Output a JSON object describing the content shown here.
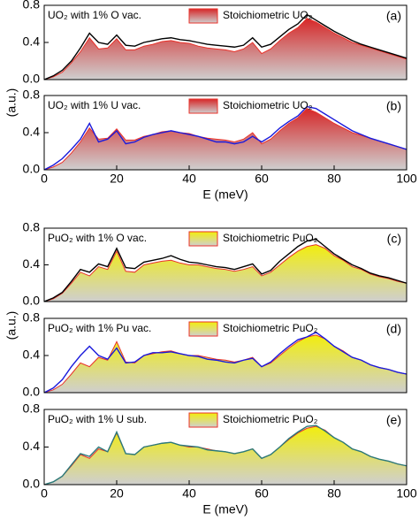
{
  "chart_data": [
    {
      "type": "line",
      "annotation": "(a)",
      "xlim": [
        0,
        100
      ],
      "ylim": [
        0,
        0.8
      ],
      "yticks": [
        {
          "value": 0,
          "label": "0.0"
        },
        0.4,
        0.8
      ],
      "x": [
        0,
        2.5,
        5,
        7.5,
        10,
        12.5,
        15,
        17.5,
        20,
        22.5,
        25,
        27.5,
        30,
        32.5,
        35,
        37.5,
        40,
        42.5,
        45,
        47.5,
        50,
        52.5,
        55,
        57.5,
        60,
        62.5,
        65,
        67.5,
        70,
        72.5,
        75,
        77.5,
        80,
        82.5,
        85,
        87.5,
        90,
        92.5,
        95,
        97.5,
        100
      ],
      "series": [
        {
          "name": "Stoichiometric UO₂",
          "kind": "area",
          "color": "#d62728",
          "values": [
            0,
            0.03,
            0.08,
            0.18,
            0.3,
            0.45,
            0.33,
            0.34,
            0.44,
            0.32,
            0.32,
            0.36,
            0.38,
            0.41,
            0.42,
            0.4,
            0.39,
            0.36,
            0.34,
            0.33,
            0.32,
            0.3,
            0.33,
            0.4,
            0.28,
            0.33,
            0.42,
            0.5,
            0.56,
            0.66,
            0.62,
            0.56,
            0.5,
            0.45,
            0.4,
            0.37,
            0.34,
            0.31,
            0.28,
            0.25,
            0.22
          ]
        },
        {
          "name": "UO₂ with 1% O vac.",
          "kind": "line",
          "color": "#000000",
          "values": [
            0,
            0.04,
            0.1,
            0.2,
            0.34,
            0.5,
            0.4,
            0.38,
            0.48,
            0.37,
            0.36,
            0.4,
            0.42,
            0.44,
            0.45,
            0.43,
            0.42,
            0.4,
            0.38,
            0.37,
            0.36,
            0.35,
            0.37,
            0.45,
            0.35,
            0.38,
            0.46,
            0.54,
            0.6,
            0.7,
            0.64,
            0.58,
            0.52,
            0.47,
            0.42,
            0.38,
            0.35,
            0.32,
            0.29,
            0.26,
            0.23
          ]
        }
      ]
    },
    {
      "type": "line",
      "annotation": "(b)",
      "xlabel": "E (meV)",
      "ylabel": "(a.u.)",
      "xlim": [
        0,
        100
      ],
      "xticks": [
        0,
        20,
        40,
        60,
        80,
        100
      ],
      "ylim": [
        0,
        0.8
      ],
      "yticks": [
        {
          "value": 0,
          "label": "0.0"
        },
        0.4,
        0.8
      ],
      "x": [
        0,
        2.5,
        5,
        7.5,
        10,
        12.5,
        15,
        17.5,
        20,
        22.5,
        25,
        27.5,
        30,
        32.5,
        35,
        37.5,
        40,
        42.5,
        45,
        47.5,
        50,
        52.5,
        55,
        57.5,
        60,
        62.5,
        65,
        67.5,
        70,
        72.5,
        75,
        77.5,
        80,
        82.5,
        85,
        87.5,
        90,
        92.5,
        95,
        97.5,
        100
      ],
      "series": [
        {
          "name": "Stoichiometric UO₂",
          "kind": "area",
          "color": "#d62728",
          "values": [
            0,
            0.03,
            0.08,
            0.18,
            0.3,
            0.45,
            0.33,
            0.34,
            0.44,
            0.32,
            0.32,
            0.36,
            0.38,
            0.41,
            0.42,
            0.4,
            0.39,
            0.36,
            0.34,
            0.33,
            0.32,
            0.3,
            0.33,
            0.4,
            0.28,
            0.33,
            0.42,
            0.5,
            0.56,
            0.66,
            0.62,
            0.56,
            0.5,
            0.45,
            0.4,
            0.37,
            0.34,
            0.31,
            0.28,
            0.25,
            0.22
          ]
        },
        {
          "name": "UO₂ with 1% U vac.",
          "kind": "line",
          "color": "#1a1adb",
          "values": [
            0,
            0.05,
            0.12,
            0.22,
            0.33,
            0.5,
            0.3,
            0.33,
            0.42,
            0.28,
            0.3,
            0.35,
            0.38,
            0.4,
            0.42,
            0.4,
            0.38,
            0.36,
            0.33,
            0.3,
            0.3,
            0.28,
            0.3,
            0.36,
            0.3,
            0.36,
            0.45,
            0.52,
            0.58,
            0.68,
            0.66,
            0.6,
            0.54,
            0.48,
            0.42,
            0.38,
            0.34,
            0.31,
            0.28,
            0.25,
            0.22
          ]
        }
      ]
    },
    {
      "type": "line",
      "annotation": "(c)",
      "xlim": [
        0,
        100
      ],
      "ylim": [
        0,
        0.8
      ],
      "yticks": [
        {
          "value": 0,
          "label": "0.0"
        },
        0.4,
        0.8
      ],
      "x": [
        0,
        2.5,
        5,
        7.5,
        10,
        12.5,
        15,
        17.5,
        20,
        22.5,
        25,
        27.5,
        30,
        32.5,
        35,
        37.5,
        40,
        42.5,
        45,
        47.5,
        50,
        52.5,
        55,
        57.5,
        60,
        62.5,
        65,
        67.5,
        70,
        72.5,
        75,
        77.5,
        80,
        82.5,
        85,
        87.5,
        90,
        92.5,
        95,
        97.5,
        100
      ],
      "series": [
        {
          "name": "Stoichiometric PuO₂",
          "kind": "area",
          "color": "#f2ee0c",
          "values": [
            0,
            0.03,
            0.09,
            0.2,
            0.32,
            0.28,
            0.38,
            0.35,
            0.55,
            0.33,
            0.32,
            0.4,
            0.42,
            0.44,
            0.45,
            0.42,
            0.4,
            0.4,
            0.38,
            0.36,
            0.35,
            0.33,
            0.35,
            0.38,
            0.28,
            0.32,
            0.4,
            0.48,
            0.55,
            0.6,
            0.62,
            0.58,
            0.5,
            0.45,
            0.38,
            0.35,
            0.3,
            0.27,
            0.25,
            0.22,
            0.2
          ]
        },
        {
          "name": "PuO₂ with 1% O vac.",
          "kind": "line",
          "color": "#000000",
          "values": [
            0,
            0.04,
            0.1,
            0.22,
            0.35,
            0.32,
            0.41,
            0.38,
            0.58,
            0.37,
            0.36,
            0.43,
            0.45,
            0.47,
            0.5,
            0.46,
            0.43,
            0.42,
            0.4,
            0.38,
            0.37,
            0.35,
            0.38,
            0.41,
            0.3,
            0.34,
            0.44,
            0.52,
            0.6,
            0.66,
            0.68,
            0.6,
            0.52,
            0.46,
            0.4,
            0.36,
            0.31,
            0.28,
            0.26,
            0.23,
            0.2
          ]
        }
      ]
    },
    {
      "type": "line",
      "annotation": "(d)",
      "ylabel": "(a.u.)",
      "xlim": [
        0,
        100
      ],
      "ylim": [
        0,
        0.8
      ],
      "yticks": [
        {
          "value": 0,
          "label": "0.0"
        },
        0.4,
        0.8
      ],
      "x": [
        0,
        2.5,
        5,
        7.5,
        10,
        12.5,
        15,
        17.5,
        20,
        22.5,
        25,
        27.5,
        30,
        32.5,
        35,
        37.5,
        40,
        42.5,
        45,
        47.5,
        50,
        52.5,
        55,
        57.5,
        60,
        62.5,
        65,
        67.5,
        70,
        72.5,
        75,
        77.5,
        80,
        82.5,
        85,
        87.5,
        90,
        92.5,
        95,
        97.5,
        100
      ],
      "series": [
        {
          "name": "Stoichiometric PuO₂",
          "kind": "area",
          "color": "#f2ee0c",
          "values": [
            0,
            0.03,
            0.09,
            0.2,
            0.32,
            0.28,
            0.38,
            0.35,
            0.55,
            0.33,
            0.32,
            0.4,
            0.42,
            0.44,
            0.45,
            0.42,
            0.4,
            0.4,
            0.38,
            0.36,
            0.35,
            0.33,
            0.35,
            0.38,
            0.28,
            0.32,
            0.4,
            0.48,
            0.55,
            0.6,
            0.62,
            0.58,
            0.5,
            0.45,
            0.38,
            0.35,
            0.3,
            0.27,
            0.25,
            0.22,
            0.2
          ]
        },
        {
          "name": "PuO₂ with 1% Pu vac.",
          "kind": "line",
          "color": "#1a1adb",
          "values": [
            0,
            0.05,
            0.14,
            0.28,
            0.4,
            0.5,
            0.4,
            0.36,
            0.48,
            0.32,
            0.33,
            0.4,
            0.43,
            0.43,
            0.44,
            0.42,
            0.4,
            0.39,
            0.36,
            0.35,
            0.33,
            0.32,
            0.35,
            0.37,
            0.28,
            0.33,
            0.42,
            0.5,
            0.57,
            0.6,
            0.65,
            0.58,
            0.5,
            0.44,
            0.38,
            0.35,
            0.3,
            0.27,
            0.25,
            0.22,
            0.2
          ]
        }
      ]
    },
    {
      "type": "line",
      "annotation": "(e)",
      "xlabel": "E (meV)",
      "xlim": [
        0,
        100
      ],
      "xticks": [
        0,
        20,
        40,
        60,
        80,
        100
      ],
      "ylim": [
        0,
        0.8
      ],
      "yticks": [
        {
          "value": 0,
          "label": "0.0"
        },
        0.4,
        0.8
      ],
      "x": [
        0,
        2.5,
        5,
        7.5,
        10,
        12.5,
        15,
        17.5,
        20,
        22.5,
        25,
        27.5,
        30,
        32.5,
        35,
        37.5,
        40,
        42.5,
        45,
        47.5,
        50,
        52.5,
        55,
        57.5,
        60,
        62.5,
        65,
        67.5,
        70,
        72.5,
        75,
        77.5,
        80,
        82.5,
        85,
        87.5,
        90,
        92.5,
        95,
        97.5,
        100
      ],
      "series": [
        {
          "name": "Stoichiometric PuO₂",
          "kind": "area",
          "color": "#f2ee0c",
          "values": [
            0,
            0.03,
            0.09,
            0.2,
            0.32,
            0.28,
            0.38,
            0.35,
            0.55,
            0.33,
            0.32,
            0.4,
            0.42,
            0.44,
            0.45,
            0.42,
            0.4,
            0.4,
            0.38,
            0.36,
            0.35,
            0.33,
            0.35,
            0.38,
            0.28,
            0.32,
            0.4,
            0.48,
            0.55,
            0.6,
            0.62,
            0.58,
            0.5,
            0.45,
            0.38,
            0.35,
            0.3,
            0.27,
            0.25,
            0.22,
            0.2
          ]
        },
        {
          "name": "PuO₂ with 1% U sub.",
          "kind": "line",
          "color": "#2a7a7a",
          "values": [
            0,
            0.03,
            0.09,
            0.21,
            0.33,
            0.3,
            0.4,
            0.35,
            0.56,
            0.33,
            0.32,
            0.4,
            0.42,
            0.44,
            0.45,
            0.42,
            0.41,
            0.4,
            0.37,
            0.36,
            0.35,
            0.33,
            0.35,
            0.38,
            0.28,
            0.32,
            0.4,
            0.49,
            0.56,
            0.62,
            0.63,
            0.57,
            0.5,
            0.45,
            0.38,
            0.35,
            0.3,
            0.27,
            0.25,
            0.22,
            0.2
          ]
        }
      ]
    }
  ]
}
